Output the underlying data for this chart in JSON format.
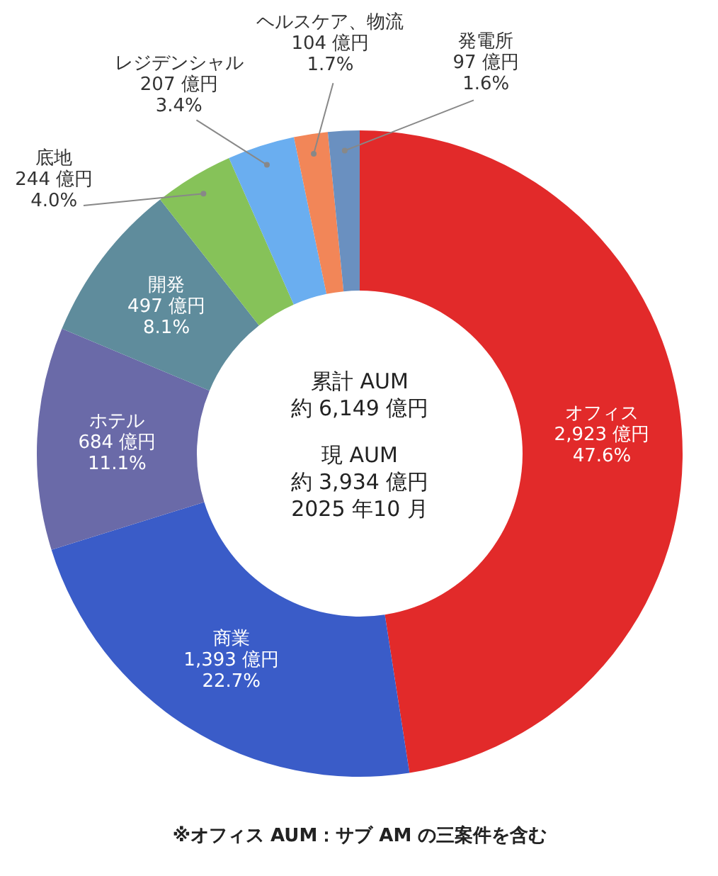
{
  "chart_data": {
    "type": "donut",
    "categories": [
      "オフィス",
      "商業",
      "ホテル",
      "開発",
      "底地",
      "レジデンシャル",
      "ヘルスケア、物流",
      "発電所"
    ],
    "values": [
      2923,
      1393,
      684,
      497,
      244,
      207,
      104,
      97
    ],
    "colors": [
      "#e22a2a",
      "#3a5cc8",
      "#6a6aa8",
      "#5f8c9c",
      "#86c259",
      "#6aaef0",
      "#f28658",
      "#6a90c0"
    ],
    "value_labels": [
      "2,923 億円\n47.6%",
      "1,393 億円\n22.7%",
      "684 億円\n11.1%",
      "497 億円\n8.1%",
      "244 億円\n4.0%",
      "207 億円\n3.4%",
      "104 億円\n1.7%",
      "97 億円\n1.6%"
    ],
    "annotations": [
      "累計 AUM\n約 6,149 億円",
      "現 AUM\n約 3,934 億円\n2025 年10 月",
      "※オフィス AUM：サブ AM の三案件を含む"
    ]
  }
}
